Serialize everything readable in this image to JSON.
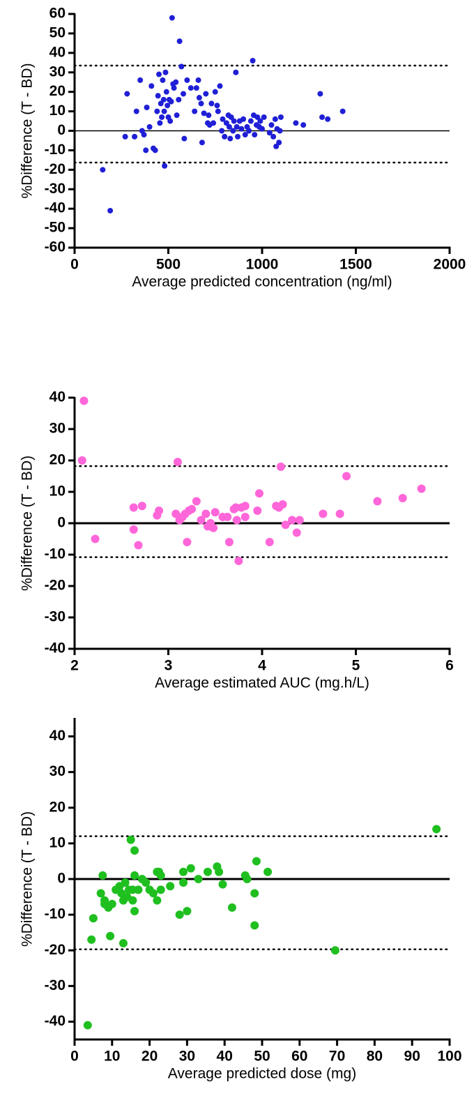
{
  "chart_data": [
    {
      "type": "scatter",
      "x_label": "Average predicted concentration (ng/ml)",
      "y_label": "%Difference (T - BD)",
      "color": "#1f1fd6",
      "xlim": [
        0,
        2000
      ],
      "xticks": [
        0,
        500,
        1000,
        1500,
        2000
      ],
      "ylim": [
        -60,
        60
      ],
      "yticks": [
        -60,
        -50,
        -40,
        -30,
        -20,
        -10,
        0,
        10,
        20,
        30,
        40,
        50,
        60
      ],
      "lines": [
        {
          "y": 0,
          "style": "solid"
        },
        {
          "y": 33.5,
          "style": "dotted"
        },
        {
          "y": -16.3,
          "style": "dotted"
        }
      ],
      "x": [
        150,
        190,
        270,
        280,
        320,
        330,
        350,
        360,
        370,
        380,
        385,
        400,
        410,
        420,
        430,
        440,
        445,
        450,
        455,
        460,
        465,
        470,
        475,
        478,
        480,
        485,
        490,
        495,
        500,
        505,
        510,
        515,
        520,
        525,
        530,
        540,
        545,
        555,
        560,
        570,
        580,
        585,
        600,
        620,
        640,
        650,
        660,
        665,
        675,
        680,
        690,
        700,
        710,
        715,
        720,
        730,
        740,
        750,
        760,
        765,
        775,
        785,
        790,
        800,
        810,
        820,
        825,
        830,
        835,
        845,
        850,
        860,
        865,
        870,
        880,
        890,
        900,
        910,
        920,
        930,
        940,
        950,
        955,
        960,
        970,
        975,
        985,
        990,
        1000,
        1010,
        1040,
        1050,
        1060,
        1070,
        1075,
        1080,
        1090,
        1095,
        1100,
        1180,
        1220,
        1310,
        1320,
        1350,
        1430
      ],
      "values": [
        -20,
        -41,
        -3,
        19,
        -3,
        10,
        26,
        0,
        -2,
        -10,
        12,
        2,
        23,
        -9,
        -10,
        10,
        18,
        29,
        4,
        14,
        7,
        26,
        16,
        10,
        -18,
        30,
        20,
        13,
        7,
        16,
        5,
        15,
        58,
        24,
        22,
        25,
        8,
        16,
        46,
        33,
        19,
        -4,
        26,
        22,
        10,
        22,
        26,
        17,
        14,
        -6,
        9,
        19,
        4,
        8,
        3,
        14,
        4,
        20,
        13,
        10,
        23,
        0,
        6,
        -3,
        4,
        8,
        2,
        -4,
        7,
        0,
        5,
        30,
        2,
        -3,
        5,
        1,
        6,
        -2,
        2,
        0,
        5,
        36,
        8,
        -2,
        3,
        7,
        2,
        5,
        1,
        7,
        -1,
        3,
        -3,
        6,
        -8,
        1,
        -6,
        0,
        7,
        4,
        3,
        19,
        7,
        6,
        10
      ]
    },
    {
      "type": "scatter",
      "x_label": "Average estimated AUC (mg.h/L)",
      "y_label": "%Difference (T - BD)",
      "color": "#ff66d9",
      "xlim": [
        2,
        6
      ],
      "xticks": [
        2,
        3,
        4,
        5,
        6
      ],
      "ylim": [
        -40,
        40
      ],
      "yticks": [
        -40,
        -30,
        -20,
        -10,
        0,
        10,
        20,
        30,
        40
      ],
      "lines": [
        {
          "y": 0,
          "style": "solid"
        },
        {
          "y": 18.2,
          "style": "dotted"
        },
        {
          "y": -10.8,
          "style": "dotted"
        }
      ],
      "x": [
        2.08,
        2.1,
        2.22,
        2.63,
        2.63,
        2.68,
        2.72,
        2.88,
        2.9,
        3.08,
        3.1,
        3.12,
        3.15,
        3.18,
        3.2,
        3.22,
        3.25,
        3.3,
        3.35,
        3.4,
        3.42,
        3.45,
        3.48,
        3.5,
        3.58,
        3.63,
        3.65,
        3.7,
        3.72,
        3.73,
        3.75,
        3.78,
        3.82,
        3.82,
        3.95,
        3.97,
        4.08,
        4.15,
        4.18,
        4.2,
        4.22,
        4.25,
        4.32,
        4.37,
        4.4,
        4.65,
        4.83,
        4.9,
        5.23,
        5.5,
        5.7
      ],
      "values": [
        20,
        39,
        -5,
        5,
        -2,
        -7,
        5.5,
        2.5,
        4,
        3,
        19.5,
        1,
        2,
        3,
        -6,
        4,
        4.5,
        7,
        1,
        3,
        -1,
        0,
        -1.5,
        3.5,
        2,
        2,
        -6,
        4.5,
        5,
        1,
        -12,
        5,
        2,
        5.5,
        4,
        9.5,
        -6,
        5.5,
        5,
        18,
        6,
        -0.5,
        1,
        -3,
        1,
        3,
        3,
        15,
        7,
        8,
        11
      ]
    },
    {
      "type": "scatter",
      "x_label": "Average predicted dose (mg)",
      "y_label": "%Difference (T - BD)",
      "color": "#1fbf1f",
      "xlim": [
        0,
        100
      ],
      "xticks": [
        0,
        10,
        20,
        30,
        40,
        50,
        60,
        70,
        80,
        90,
        100
      ],
      "ylim": [
        -45,
        45
      ],
      "yticks": [
        -40,
        -30,
        -20,
        -10,
        0,
        10,
        20,
        30,
        40
      ],
      "lines": [
        {
          "y": 0,
          "style": "solid"
        },
        {
          "y": 12,
          "style": "dotted"
        },
        {
          "y": -19.7,
          "style": "dotted"
        }
      ],
      "x": [
        3.5,
        4.5,
        5,
        7,
        7.5,
        8,
        8,
        9,
        9.5,
        10,
        11,
        12,
        12.5,
        13,
        13,
        13.5,
        14,
        14.5,
        15,
        15.5,
        15.5,
        16,
        16,
        16,
        17,
        18,
        19,
        20,
        21,
        22,
        22,
        22.5,
        23,
        23,
        25.5,
        28,
        29,
        29,
        30,
        31,
        33,
        35.5,
        38,
        38.5,
        39.5,
        42,
        45.5,
        46,
        48,
        48,
        48.5,
        51.5,
        69.5,
        96.5
      ],
      "values": [
        -41,
        -17,
        -11,
        -4,
        1,
        -6,
        -7,
        -8,
        -16,
        -7,
        -3,
        -2,
        -4,
        -18,
        -6,
        -1,
        -5,
        -3,
        11,
        -3,
        -6,
        8,
        1,
        -9,
        -3,
        0,
        -1,
        -3,
        -4,
        2,
        -6,
        2,
        -3,
        1,
        -2,
        -10,
        -1,
        2,
        -9,
        3,
        0,
        2,
        3.5,
        2,
        -1.5,
        -8,
        1,
        0,
        -4,
        -13,
        5,
        2,
        -20,
        14
      ]
    }
  ]
}
